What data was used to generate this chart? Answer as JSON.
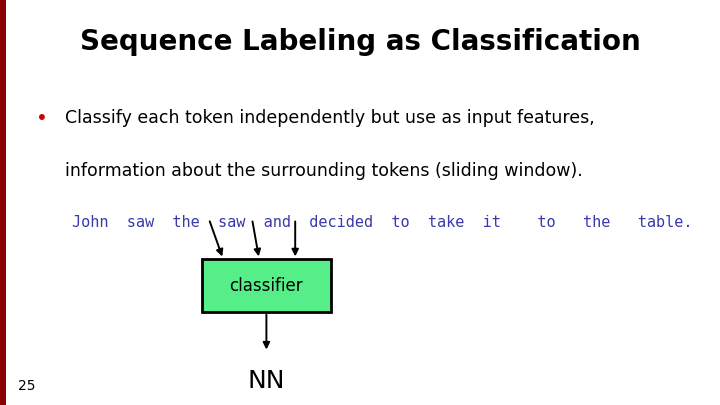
{
  "title": "Sequence Labeling as Classification",
  "title_fontsize": 20,
  "title_fontweight": "bold",
  "title_color": "#000000",
  "bg_color": "#ffffff",
  "red_bar_color": "#8b0000",
  "bullet_char": "•",
  "bullet_text_line1": "Classify each token independently but use as input features,",
  "bullet_text_line2": "information about the surrounding tokens (sliding window).",
  "bullet_color": "#cc0000",
  "body_color": "#000000",
  "body_fontsize": 12.5,
  "token_text": "John  saw  the  saw  and  decided  to  take  it    to   the   table.",
  "token_color": "#3a3aaa",
  "token_fontsize": 11,
  "classifier_label": "classifier",
  "classifier_bg": "#55ee88",
  "classifier_border": "#000000",
  "output_label": "NN",
  "output_fontsize": 18,
  "page_number": "25",
  "page_fontsize": 10,
  "arrow_color": "#000000"
}
